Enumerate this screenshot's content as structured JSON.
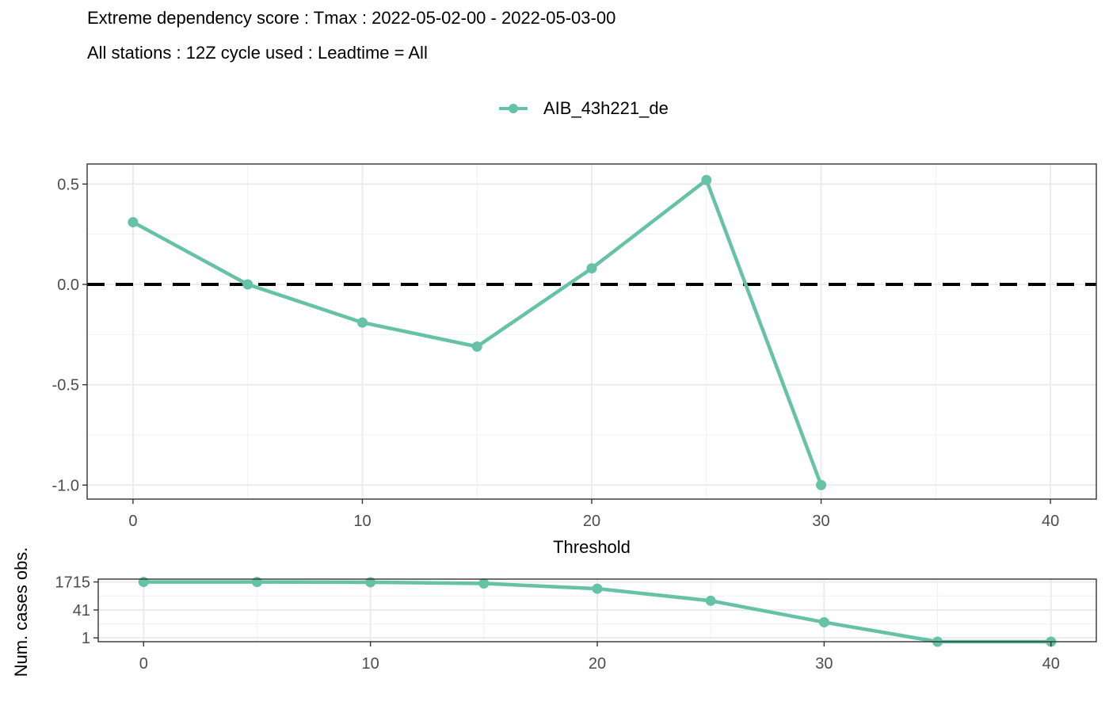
{
  "title": "Extreme dependency score : Tmax : 2022-05-02-00 - 2022-05-03-00",
  "subtitle": "All stations : 12Z cycle used : Leadtime = All",
  "legend": {
    "series_name": "AIB_43h221_de",
    "color": "#66c2a5",
    "position": "top"
  },
  "chart_data": [
    {
      "type": "line",
      "title": "Extreme dependency score : Tmax : 2022-05-02-00 - 2022-05-03-00",
      "subtitle": "All stations : 12Z cycle used : Leadtime = All",
      "xlabel": "Threshold",
      "ylabel": "",
      "xlim": [
        -2,
        42
      ],
      "ylim": [
        -1.07,
        0.6
      ],
      "x_ticks": [
        0,
        10,
        20,
        30,
        40
      ],
      "y_ticks": [
        0.5,
        0.0,
        -0.5,
        -1.0
      ],
      "y_tick_labels": [
        "0.5",
        "0.0",
        "-0.5",
        "-1.0"
      ],
      "grid": true,
      "reference_line": {
        "y": 0,
        "style": "dashed",
        "color": "#000000"
      },
      "series": [
        {
          "name": "AIB_43h221_de",
          "color": "#66c2a5",
          "x": [
            0,
            5,
            10,
            15,
            20,
            25,
            30
          ],
          "y": [
            0.31,
            0.0,
            -0.19,
            -0.31,
            0.08,
            0.52,
            -1.0
          ]
        }
      ]
    },
    {
      "type": "line",
      "xlabel": "",
      "ylabel": "Num. cases obs.",
      "xlim": [
        -2,
        42
      ],
      "y_scale": "log",
      "ylim": [
        0.6,
        2500
      ],
      "x_ticks": [
        0,
        10,
        20,
        30,
        40
      ],
      "y_ticks": [
        1715,
        41,
        1
      ],
      "y_tick_labels": [
        "1715",
        "41",
        "1"
      ],
      "grid": true,
      "series": [
        {
          "name": "AIB_43h221_de",
          "color": "#66c2a5",
          "x": [
            0,
            5,
            10,
            15,
            20,
            25,
            30,
            35,
            40
          ],
          "y": [
            1715,
            1700,
            1650,
            1400,
            700,
            140,
            8,
            0.6,
            0.6
          ]
        }
      ]
    }
  ]
}
